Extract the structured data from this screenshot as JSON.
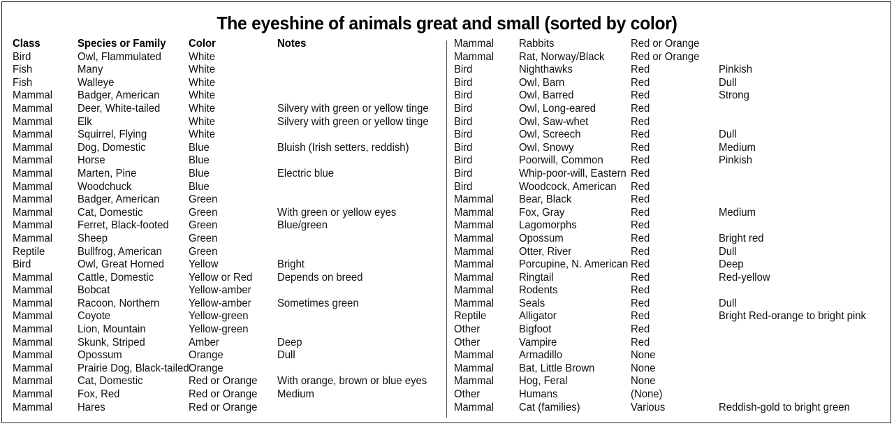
{
  "title": "The eyeshine of animals great and small (sorted by color)",
  "headers": [
    "Class",
    "Species or Family",
    "Color",
    "Notes"
  ],
  "left_rows": [
    [
      "Bird",
      "Owl, Flammulated",
      "White",
      ""
    ],
    [
      "Fish",
      "Many",
      "White",
      ""
    ],
    [
      "Fish",
      "Walleye",
      "White",
      ""
    ],
    [
      "Mammal",
      "Badger, American",
      "White",
      ""
    ],
    [
      "Mammal",
      "Deer, White-tailed",
      "White",
      "Silvery with green or yellow tinge"
    ],
    [
      "Mammal",
      "Elk",
      "White",
      "Silvery with green or yellow tinge"
    ],
    [
      "Mammal",
      "Squirrel, Flying",
      "White",
      ""
    ],
    [
      "Mammal",
      "Dog, Domestic",
      "Blue",
      "Bluish (Irish setters, reddish)"
    ],
    [
      "Mammal",
      "Horse",
      "Blue",
      ""
    ],
    [
      "Mammal",
      "Marten, Pine",
      "Blue",
      "Electric blue"
    ],
    [
      "Mammal",
      "Woodchuck",
      "Blue",
      ""
    ],
    [
      "Mammal",
      "Badger, American",
      "Green",
      ""
    ],
    [
      "Mammal",
      "Cat, Domestic",
      "Green",
      "With green or yellow eyes"
    ],
    [
      "Mammal",
      "Ferret, Black-footed",
      "Green",
      "Blue/green"
    ],
    [
      "Mammal",
      "Sheep",
      "Green",
      ""
    ],
    [
      "Reptile",
      "Bullfrog, American",
      "Green",
      ""
    ],
    [
      "Bird",
      "Owl, Great Horned",
      "Yellow",
      "Bright"
    ],
    [
      "Mammal",
      "Cattle, Domestic",
      "Yellow or Red",
      "Depends on breed"
    ],
    [
      "Mammal",
      "Bobcat",
      "Yellow-amber",
      ""
    ],
    [
      "Mammal",
      "Racoon, Northern",
      "Yellow-amber",
      "Sometimes green"
    ],
    [
      "Mammal",
      "Coyote",
      "Yellow-green",
      ""
    ],
    [
      "Mammal",
      "Lion, Mountain",
      "Yellow-green",
      ""
    ],
    [
      "Mammal",
      "Skunk, Striped",
      "Amber",
      "Deep"
    ],
    [
      "Mammal",
      "Opossum",
      "Orange",
      "Dull"
    ],
    [
      "Mammal",
      "Prairie Dog, Black-tailed",
      "Orange",
      ""
    ],
    [
      "Mammal",
      "Cat, Domestic",
      "Red or Orange",
      "With orange, brown or blue eyes"
    ],
    [
      "Mammal",
      "Fox, Red",
      "Red or Orange",
      "Medium"
    ],
    [
      "Mammal",
      "Hares",
      "Red or Orange",
      ""
    ]
  ],
  "right_rows": [
    [
      "Mammal",
      "Rabbits",
      "Red or Orange",
      ""
    ],
    [
      "Mammal",
      "Rat, Norway/Black",
      "Red or Orange",
      ""
    ],
    [
      "Bird",
      "Nighthawks",
      "Red",
      "Pinkish"
    ],
    [
      "Bird",
      "Owl, Barn",
      "Red",
      "Dull"
    ],
    [
      "Bird",
      "Owl, Barred",
      "Red",
      "Strong"
    ],
    [
      "Bird",
      "Owl, Long-eared",
      "Red",
      ""
    ],
    [
      "Bird",
      "Owl, Saw-whet",
      "Red",
      ""
    ],
    [
      "Bird",
      "Owl, Screech",
      "Red",
      "Dull"
    ],
    [
      "Bird",
      "Owl, Snowy",
      "Red",
      "Medium"
    ],
    [
      "Bird",
      "Poorwill, Common",
      "Red",
      "Pinkish"
    ],
    [
      "Bird",
      "Whip-poor-will, Eastern",
      "Red",
      ""
    ],
    [
      "Bird",
      "Woodcock, American",
      "Red",
      ""
    ],
    [
      "Mammal",
      "Bear, Black",
      "Red",
      ""
    ],
    [
      "Mammal",
      "Fox, Gray",
      "Red",
      "Medium"
    ],
    [
      "Mammal",
      "Lagomorphs",
      "Red",
      ""
    ],
    [
      "Mammal",
      "Opossum",
      "Red",
      "Bright red"
    ],
    [
      "Mammal",
      "Otter, River",
      "Red",
      "Dull"
    ],
    [
      "Mammal",
      "Porcupine, N. American",
      "Red",
      "Deep"
    ],
    [
      "Mammal",
      "Ringtail",
      "Red",
      "Red-yellow"
    ],
    [
      "Mammal",
      "Rodents",
      "Red",
      ""
    ],
    [
      "Mammal",
      "Seals",
      "Red",
      "Dull"
    ],
    [
      "Reptile",
      "Alligator",
      "Red",
      "Bright Red-orange to bright pink"
    ],
    [
      "Other",
      "Bigfoot",
      "Red",
      ""
    ],
    [
      "Other",
      "Vampire",
      "Red",
      ""
    ],
    [
      "Mammal",
      "Armadillo",
      "None",
      ""
    ],
    [
      "Mammal",
      "Bat, Little Brown",
      "None",
      ""
    ],
    [
      "Mammal",
      "Hog, Feral",
      "None",
      ""
    ],
    [
      "Other",
      "Humans",
      "(None)",
      ""
    ],
    [
      "Mammal",
      "Cat (families)",
      "Various",
      "Reddish-gold to bright green"
    ]
  ]
}
